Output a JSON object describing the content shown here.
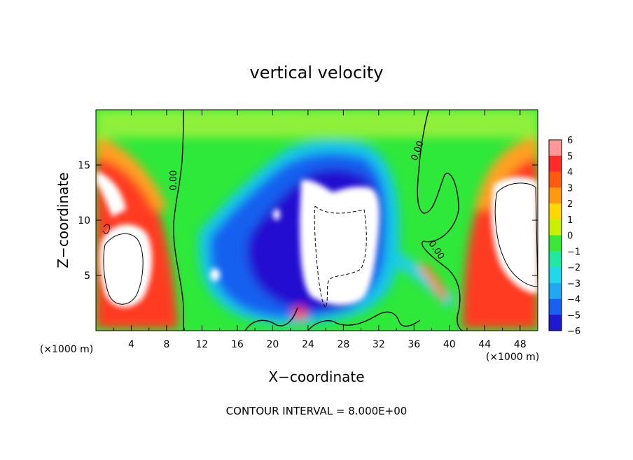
{
  "chart_data": {
    "type": "heatmap",
    "title": "vertical velocity",
    "xlabel": "X−coordinate",
    "ylabel": "Z−coordinate",
    "x_unit": "(×1000 m)",
    "y_unit": "(×1000 m)",
    "xlim": [
      0,
      50
    ],
    "ylim": [
      0,
      20
    ],
    "x_ticks": [
      4,
      8,
      12,
      16,
      20,
      24,
      28,
      32,
      36,
      40,
      44,
      48
    ],
    "y_ticks": [
      5,
      10,
      15
    ],
    "colorbar": {
      "min": -6,
      "max": 6,
      "ticks": [
        "6",
        "5",
        "4",
        "3",
        "2",
        "1",
        "0",
        "−1",
        "−2",
        "−3",
        "−4",
        "−5",
        "−6"
      ]
    },
    "contour_labels": [
      "0.00",
      "0.00",
      "0.00"
    ],
    "footer": "CONTOUR INTERVAL = 8.000E+00",
    "grid": false,
    "legend": "colorbar-right"
  }
}
